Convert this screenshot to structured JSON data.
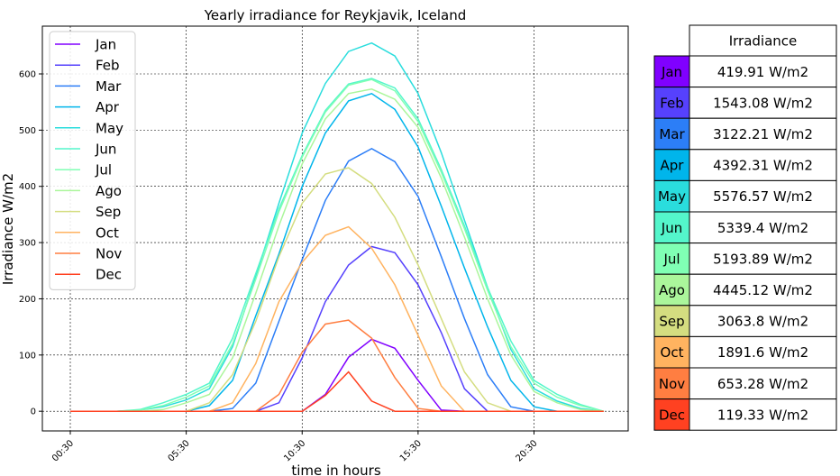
{
  "chart_data": {
    "type": "line",
    "title": "Yearly irradiance for Reykjavik, Iceland",
    "xlabel": "time in hours",
    "ylabel": "Irradiance W/m2",
    "x_tick_labels": [
      "00:30",
      "05:30",
      "10:30",
      "15:30",
      "20:30"
    ],
    "y_ticks": [
      0,
      100,
      200,
      300,
      400,
      500,
      600
    ],
    "ylim": [
      -35,
      685
    ],
    "grid": true,
    "legend_position": "upper-left",
    "x_hours": [
      0.5,
      1.5,
      2.5,
      3.5,
      4.5,
      5.5,
      6.5,
      7.5,
      8.5,
      9.5,
      10.5,
      11.5,
      12.5,
      13.5,
      14.5,
      15.5,
      16.5,
      17.5,
      18.5,
      19.5,
      20.5,
      21.5,
      22.5,
      23.5
    ],
    "series": [
      {
        "name": "Jan",
        "color": "#8000ff",
        "values": [
          0,
          0,
          0,
          0,
          0,
          0,
          0,
          0,
          0,
          0,
          0,
          30,
          96,
          128,
          112,
          55,
          2,
          0,
          0,
          0,
          0,
          0,
          0,
          0
        ]
      },
      {
        "name": "Feb",
        "color": "#5641fd",
        "values": [
          0,
          0,
          0,
          0,
          0,
          0,
          0,
          0,
          0,
          15,
          95,
          195,
          260,
          293,
          282,
          225,
          140,
          40,
          0,
          0,
          0,
          0,
          0,
          0
        ]
      },
      {
        "name": "Mar",
        "color": "#2c7ef7",
        "values": [
          0,
          0,
          0,
          0,
          0,
          0,
          0,
          5,
          50,
          160,
          270,
          375,
          445,
          467,
          444,
          382,
          275,
          165,
          65,
          8,
          0,
          0,
          0,
          0
        ]
      },
      {
        "name": "Apr",
        "color": "#00b5eb",
        "values": [
          0,
          0,
          0,
          0,
          0,
          0,
          10,
          55,
          170,
          280,
          400,
          495,
          552,
          565,
          537,
          470,
          365,
          255,
          150,
          55,
          8,
          0,
          0,
          0
        ]
      },
      {
        "name": "May",
        "color": "#2adddd",
        "values": [
          0,
          0,
          0,
          2,
          8,
          20,
          40,
          115,
          240,
          370,
          495,
          583,
          640,
          655,
          632,
          565,
          460,
          340,
          220,
          110,
          40,
          18,
          5,
          0
        ]
      },
      {
        "name": "Jun",
        "color": "#54f6cb",
        "values": [
          0,
          0,
          0,
          3,
          15,
          30,
          50,
          130,
          245,
          360,
          455,
          535,
          582,
          592,
          575,
          520,
          430,
          330,
          220,
          125,
          55,
          30,
          12,
          0
        ]
      },
      {
        "name": "Jul",
        "color": "#80ffb4",
        "values": [
          0,
          0,
          0,
          2,
          10,
          25,
          45,
          120,
          235,
          355,
          452,
          532,
          580,
          590,
          570,
          515,
          425,
          325,
          215,
          115,
          50,
          25,
          10,
          0
        ]
      },
      {
        "name": "Ago",
        "color": "#abf69b",
        "values": [
          0,
          0,
          0,
          0,
          3,
          15,
          30,
          95,
          210,
          330,
          440,
          520,
          565,
          573,
          555,
          505,
          415,
          310,
          200,
          100,
          35,
          15,
          3,
          0
        ]
      },
      {
        "name": "Sep",
        "color": "#d4dd80",
        "values": [
          0,
          0,
          0,
          0,
          0,
          0,
          15,
          65,
          160,
          275,
          370,
          422,
          433,
          405,
          345,
          260,
          165,
          70,
          15,
          0,
          0,
          0,
          0,
          0
        ]
      },
      {
        "name": "Oct",
        "color": "#ffb360",
        "values": [
          0,
          0,
          0,
          0,
          0,
          0,
          0,
          15,
          85,
          195,
          265,
          313,
          328,
          290,
          225,
          135,
          45,
          0,
          0,
          0,
          0,
          0,
          0,
          0
        ]
      },
      {
        "name": "Nov",
        "color": "#ff7e41",
        "values": [
          0,
          0,
          0,
          0,
          0,
          0,
          0,
          0,
          0,
          30,
          105,
          155,
          162,
          130,
          60,
          5,
          0,
          0,
          0,
          0,
          0,
          0,
          0,
          0
        ]
      },
      {
        "name": "Dec",
        "color": "#ff4121",
        "values": [
          0,
          0,
          0,
          0,
          0,
          0,
          0,
          0,
          0,
          0,
          0,
          28,
          70,
          18,
          0,
          0,
          0,
          0,
          0,
          0,
          0,
          0,
          0,
          0
        ]
      }
    ]
  },
  "table": {
    "header": "Irradiance",
    "rows": [
      {
        "month": "Jan",
        "value": "419.91 W/m2",
        "color": "#8000ff"
      },
      {
        "month": "Feb",
        "value": "1543.08 W/m2",
        "color": "#5641fd"
      },
      {
        "month": "Mar",
        "value": "3122.21 W/m2",
        "color": "#2c7ef7"
      },
      {
        "month": "Apr",
        "value": "4392.31 W/m2",
        "color": "#00b5eb"
      },
      {
        "month": "May",
        "value": "5576.57 W/m2",
        "color": "#2adddd"
      },
      {
        "month": "Jun",
        "value": "5339.4 W/m2",
        "color": "#54f6cb"
      },
      {
        "month": "Jul",
        "value": "5193.89 W/m2",
        "color": "#80ffb4"
      },
      {
        "month": "Ago",
        "value": "4445.12 W/m2",
        "color": "#abf69b"
      },
      {
        "month": "Sep",
        "value": "3063.8 W/m2",
        "color": "#d4dd80"
      },
      {
        "month": "Oct",
        "value": "1891.6 W/m2",
        "color": "#ffb360"
      },
      {
        "month": "Nov",
        "value": "653.28 W/m2",
        "color": "#ff7e41"
      },
      {
        "month": "Dec",
        "value": "119.33 W/m2",
        "color": "#ff4121"
      }
    ]
  }
}
